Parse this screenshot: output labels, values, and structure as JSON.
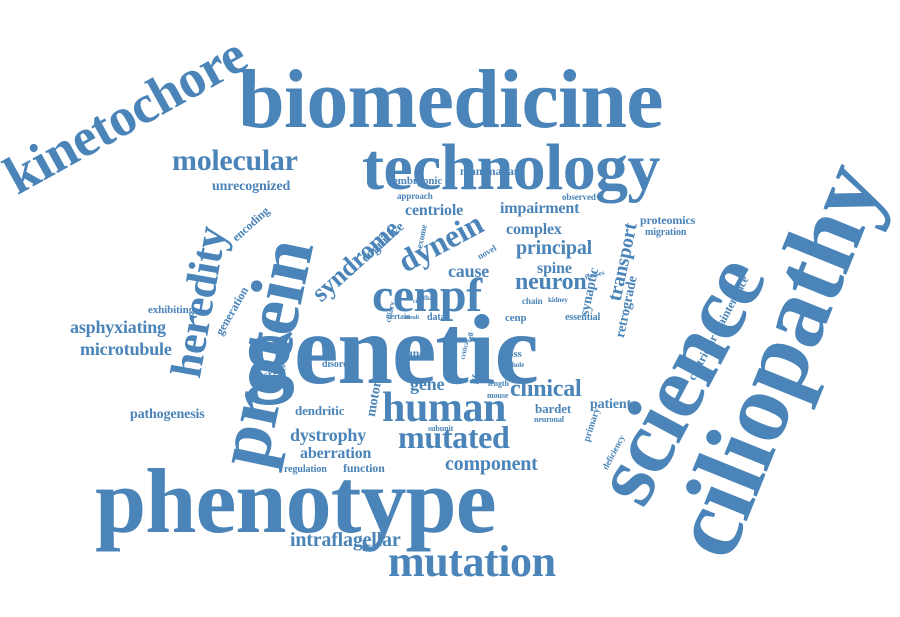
{
  "cloud": {
    "color": "#4a84b8",
    "words": [
      {
        "text": "genetic"
      },
      {
        "text": "phenotype"
      },
      {
        "text": "biomedicine"
      },
      {
        "text": "technology"
      },
      {
        "text": "science"
      },
      {
        "text": "ciliopathy"
      },
      {
        "text": "protein"
      },
      {
        "text": "kinetochore"
      },
      {
        "text": "mutation"
      },
      {
        "text": "human"
      },
      {
        "text": "heredity"
      },
      {
        "text": "cenpf"
      },
      {
        "text": "molecular"
      },
      {
        "text": "mutated"
      },
      {
        "text": "dynein"
      },
      {
        "text": "syndrome"
      },
      {
        "text": "transport"
      },
      {
        "text": "neuron"
      },
      {
        "text": "component"
      },
      {
        "text": "clinical"
      },
      {
        "text": "intraflagellar"
      },
      {
        "text": "asphyxiating"
      },
      {
        "text": "microtubule"
      },
      {
        "text": "dystrophy"
      },
      {
        "text": "aberration"
      },
      {
        "text": "principal"
      },
      {
        "text": "cause"
      },
      {
        "text": "gene"
      },
      {
        "text": "impairment"
      },
      {
        "text": "complex"
      },
      {
        "text": "spine"
      },
      {
        "text": "centriole"
      },
      {
        "text": "unrecognized"
      },
      {
        "text": "retrograde"
      },
      {
        "text": "synaptic"
      },
      {
        "text": "patient"
      },
      {
        "text": "motor"
      },
      {
        "text": "pathogenesis"
      },
      {
        "text": "centriolar maintenance"
      },
      {
        "text": "cognitive"
      },
      {
        "text": "mammalian"
      },
      {
        "text": "embryonic"
      },
      {
        "text": "generation"
      },
      {
        "text": "encoding"
      },
      {
        "text": "dendritic"
      },
      {
        "text": "bardet"
      },
      {
        "text": "function"
      },
      {
        "text": "regulation"
      },
      {
        "text": "proteomics"
      },
      {
        "text": "migration"
      },
      {
        "text": "exhibiting"
      },
      {
        "text": "disease"
      },
      {
        "text": "jeune"
      },
      {
        "text": "approach"
      },
      {
        "text": "observed"
      },
      {
        "text": "novel"
      },
      {
        "text": "exome"
      },
      {
        "text": "life"
      },
      {
        "text": "loss"
      },
      {
        "text": "primary"
      },
      {
        "text": "deficiency"
      },
      {
        "text": "essential"
      },
      {
        "text": "disorder"
      },
      {
        "text": "cenp"
      },
      {
        "text": "neuronal"
      },
      {
        "text": "ciliary"
      },
      {
        "text": "data"
      },
      {
        "text": "chain"
      },
      {
        "text": "kidney"
      },
      {
        "text": "fetuses"
      },
      {
        "text": "lethal"
      },
      {
        "text": "certain"
      },
      {
        "text": "result"
      },
      {
        "text": "cilia"
      },
      {
        "text": "c1744g"
      },
      {
        "text": "critical"
      },
      {
        "text": "cell"
      },
      {
        "text": "length"
      },
      {
        "text": "mouse"
      },
      {
        "text": "whole"
      },
      {
        "text": "subunit"
      }
    ]
  }
}
